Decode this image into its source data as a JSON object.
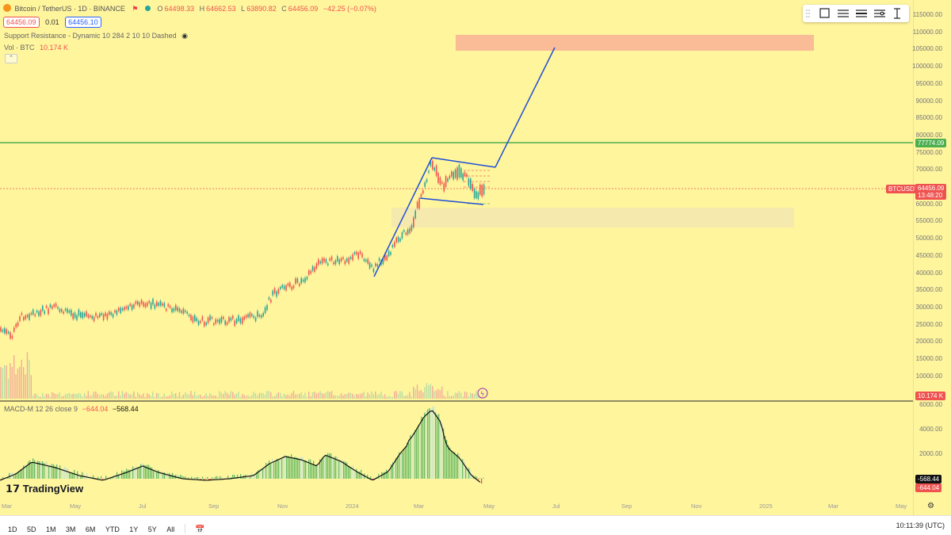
{
  "header": {
    "symbol_title": "Bitcoin / TetherUS · 1D · BINANCE",
    "ohlc": {
      "o_label": "O",
      "o": "64498.33",
      "h_label": "H",
      "h": "64662.53",
      "l_label": "L",
      "l": "63890.82",
      "c_label": "C",
      "c": "64456.09",
      "change": "−42.25 (−0.07%)"
    },
    "bid": "64456.09",
    "spread": "0.01",
    "ask": "64456.10",
    "indicator_sr": "Support Resistance - Dynamic 10 284 2 10 10 Dashed",
    "vol_label": "Vol · BTC",
    "vol_value": "10.174 K",
    "up_color": "#26a69a",
    "down_color": "#ef5350"
  },
  "price_axis": {
    "ticks": [
      "115000.00",
      "110000.00",
      "105000.00",
      "100000.00",
      "95000.00",
      "90000.00",
      "85000.00",
      "80000.00",
      "75000.00",
      "70000.00",
      "65000.00",
      "60000.00",
      "55000.00",
      "50000.00",
      "45000.00",
      "40000.00",
      "35000.00",
      "30000.00",
      "25000.00",
      "20000.00",
      "15000.00",
      "10000.00"
    ],
    "resistance_label": "77774.09",
    "last_symbol": "BTCUSDT",
    "last_price": "64456.09",
    "countdown": "13:48:20",
    "volume_label": "10.174 K"
  },
  "macd": {
    "label": "MACD-M 12 26 close 9",
    "v1": "−644.04",
    "v2": "−568.44",
    "ticks": [
      "6000.00",
      "4000.00",
      "2000.00"
    ],
    "tag_signal": "-568.44",
    "tag_macd": "-644.04"
  },
  "time_axis": [
    "Mar",
    "May",
    "Jul",
    "Sep",
    "Nov",
    "2024",
    "Mar",
    "May",
    "Jul",
    "Sep",
    "Nov",
    "2025",
    "Mar",
    "May"
  ],
  "brand": "TradingView",
  "bottom_bar": {
    "ranges": [
      "1D",
      "5D",
      "1M",
      "3M",
      "6M",
      "YTD",
      "1Y",
      "5Y",
      "All"
    ],
    "clock": "10:11:39 (UTC)"
  },
  "colors": {
    "background": "#fff59d",
    "resistance_line": "#4caf50",
    "channel": "#1e4fd6",
    "target_zone": "#f8b195",
    "support_zone": "#f5e8b0"
  }
}
